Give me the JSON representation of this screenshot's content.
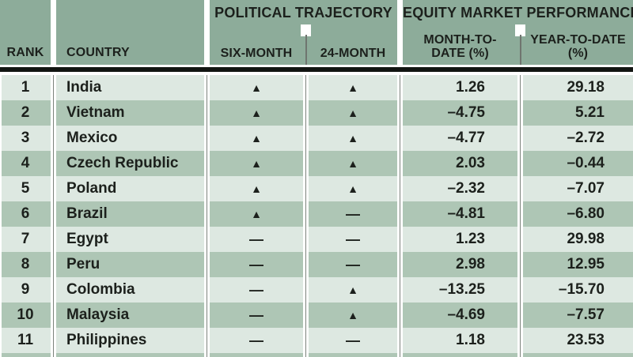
{
  "table": {
    "headers": {
      "rank": "RANK",
      "country": "COUNTRY",
      "political_group": "POLITICAL TRAJECTORY",
      "six_month": "SIX-MONTH",
      "twenty_four_month": "24-MONTH",
      "equity_group": "EQUITY MARKET PERFORMANCE",
      "mtd_line1": "MONTH-TO-",
      "mtd_line2": "DATE (%)",
      "ytd_line1": "YEAR-TO-DATE",
      "ytd_line2": "(%)"
    },
    "rows": [
      {
        "rank": "1",
        "country": "India",
        "six_month": "▲",
        "twenty_four_month": "▲",
        "mtd": "1.26",
        "ytd": "29.18"
      },
      {
        "rank": "2",
        "country": "Vietnam",
        "six_month": "▲",
        "twenty_four_month": "▲",
        "mtd": "–4.75",
        "ytd": "5.21"
      },
      {
        "rank": "3",
        "country": "Mexico",
        "six_month": "▲",
        "twenty_four_month": "▲",
        "mtd": "–4.77",
        "ytd": "–2.72"
      },
      {
        "rank": "4",
        "country": "Czech Republic",
        "six_month": "▲",
        "twenty_four_month": "▲",
        "mtd": "2.03",
        "ytd": "–0.44"
      },
      {
        "rank": "5",
        "country": "Poland",
        "six_month": "▲",
        "twenty_four_month": "▲",
        "mtd": "–2.32",
        "ytd": "–7.07"
      },
      {
        "rank": "6",
        "country": "Brazil",
        "six_month": "▲",
        "twenty_four_month": "—",
        "mtd": "–4.81",
        "ytd": "–6.80"
      },
      {
        "rank": "7",
        "country": "Egypt",
        "six_month": "—",
        "twenty_four_month": "—",
        "mtd": "1.23",
        "ytd": "29.98"
      },
      {
        "rank": "8",
        "country": "Peru",
        "six_month": "—",
        "twenty_four_month": "—",
        "mtd": "2.98",
        "ytd": "12.95"
      },
      {
        "rank": "9",
        "country": "Colombia",
        "six_month": "—",
        "twenty_four_month": "▲",
        "mtd": "–13.25",
        "ytd": "–15.70"
      },
      {
        "rank": "10",
        "country": "Malaysia",
        "six_month": "—",
        "twenty_four_month": "▲",
        "mtd": "–4.69",
        "ytd": "–7.57"
      },
      {
        "rank": "11",
        "country": "Philippines",
        "six_month": "—",
        "twenty_four_month": "—",
        "mtd": "1.18",
        "ytd": "23.53"
      }
    ]
  },
  "chart_data": {
    "type": "table",
    "title": "",
    "columns": [
      "RANK",
      "COUNTRY",
      "POLITICAL TRAJECTORY — SIX-MONTH",
      "POLITICAL TRAJECTORY — 24-MONTH",
      "EQUITY MARKET PERFORMANCE — MONTH-TO-DATE (%)",
      "EQUITY MARKET PERFORMANCE — YEAR-TO-DATE (%)"
    ],
    "rows": [
      [
        1,
        "India",
        "up",
        "up",
        1.26,
        29.18
      ],
      [
        2,
        "Vietnam",
        "up",
        "up",
        -4.75,
        5.21
      ],
      [
        3,
        "Mexico",
        "up",
        "up",
        -4.77,
        -2.72
      ],
      [
        4,
        "Czech Republic",
        "up",
        "up",
        2.03,
        -0.44
      ],
      [
        5,
        "Poland",
        "up",
        "up",
        -2.32,
        -7.07
      ],
      [
        6,
        "Brazil",
        "up",
        "flat",
        -4.81,
        -6.8
      ],
      [
        7,
        "Egypt",
        "flat",
        "flat",
        1.23,
        29.98
      ],
      [
        8,
        "Peru",
        "flat",
        "flat",
        2.98,
        12.95
      ],
      [
        9,
        "Colombia",
        "flat",
        "up",
        -13.25,
        -15.7
      ],
      [
        10,
        "Malaysia",
        "flat",
        "up",
        -4.69,
        -7.57
      ],
      [
        11,
        "Philippines",
        "flat",
        "flat",
        1.18,
        23.53
      ]
    ],
    "symbol_legend": {
      "up": "▲",
      "flat": "—"
    }
  },
  "colors": {
    "header_green": "#8dac9a",
    "row_light": "#dde8e1",
    "row_dark": "#aec6b5",
    "rule_black": "#121512",
    "text": "#1c201c",
    "divider_gray": "#7d837d"
  }
}
